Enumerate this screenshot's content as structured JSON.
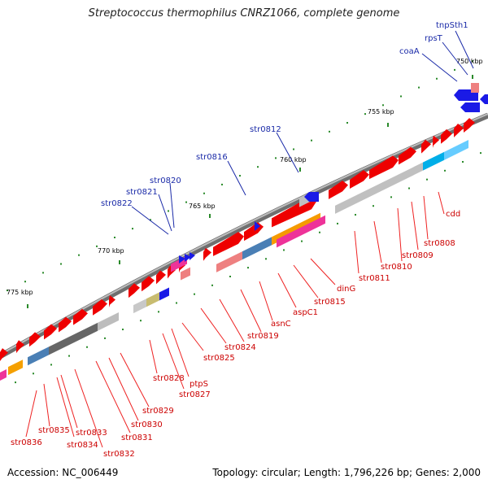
{
  "title": "Streptococcus thermophilus CNRZ1066, complete genome",
  "footer": {
    "accession": "Accession: NC_006449",
    "stats": "Topology: circular; Length: 1,796,226 bp; Genes: 2,000"
  },
  "scale_labels": [
    "750 kbp",
    "755 kbp",
    "760 kbp",
    "765 kbp",
    "770 kbp",
    "775 kbp"
  ],
  "blue_labels": [
    "tnpSth1",
    "rpsT",
    "coaA",
    "str0812",
    "str0816",
    "str0820",
    "str0821",
    "str0822"
  ],
  "red_labels": [
    "cdd",
    "str0808",
    "str0809",
    "str0810",
    "str0811",
    "dinG",
    "str0815",
    "aspC1",
    "asnC",
    "str0819",
    "str0824",
    "str0825",
    "ptpS",
    "str0827",
    "str0828",
    "str0829",
    "str0830",
    "str0831",
    "str0832",
    "str0833",
    "str0834",
    "str0835",
    "str0836"
  ],
  "colors": {
    "backbone": "#7a7a7a",
    "forward_gene": "#ee0000",
    "reverse_gene": "#1a1ae6",
    "red_label": "#cc0000",
    "blue_label": "#1a2aa8",
    "tick_green": "#2a8a2a"
  }
}
